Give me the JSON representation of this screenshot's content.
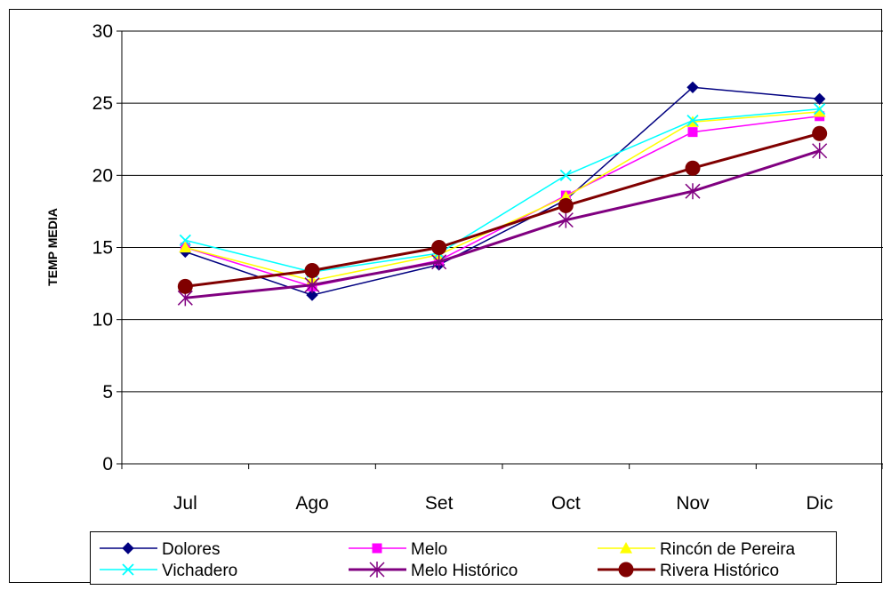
{
  "chart_data": {
    "type": "line",
    "title": "",
    "xlabel": "",
    "ylabel": "TEMP MEDIA",
    "categories": [
      "Jul",
      "Ago",
      "Set",
      "Oct",
      "Nov",
      "Dic"
    ],
    "ylim": [
      0,
      30
    ],
    "yticks": [
      0,
      5,
      10,
      15,
      20,
      25,
      30
    ],
    "grid": "horizontal",
    "legend_position": "bottom",
    "series": [
      {
        "name": "Dolores",
        "values": [
          14.7,
          11.7,
          13.8,
          18.3,
          26.1,
          25.3
        ],
        "color": "#000080",
        "marker": "diamond",
        "width": 1.5
      },
      {
        "name": "Melo",
        "values": [
          15.0,
          12.3,
          14.1,
          18.6,
          23.0,
          24.1
        ],
        "color": "#FF00FF",
        "marker": "square",
        "width": 1.5
      },
      {
        "name": "Rincón de Pereira",
        "values": [
          15.0,
          12.7,
          14.5,
          18.5,
          23.7,
          24.4
        ],
        "color": "#FFFF00",
        "marker": "triangle",
        "width": 1.5
      },
      {
        "name": "Vichadero",
        "values": [
          15.5,
          13.3,
          14.6,
          20.0,
          23.8,
          24.6
        ],
        "color": "#00FFFF",
        "marker": "x",
        "width": 1.5
      },
      {
        "name": "Melo Histórico",
        "values": [
          11.5,
          12.4,
          14.0,
          16.9,
          18.9,
          21.7
        ],
        "color": "#800080",
        "marker": "asterisk",
        "width": 3
      },
      {
        "name": "Rivera Histórico",
        "values": [
          12.3,
          13.4,
          15.0,
          17.9,
          20.5,
          22.9
        ],
        "color": "#800000",
        "marker": "circle",
        "width": 3
      }
    ]
  }
}
